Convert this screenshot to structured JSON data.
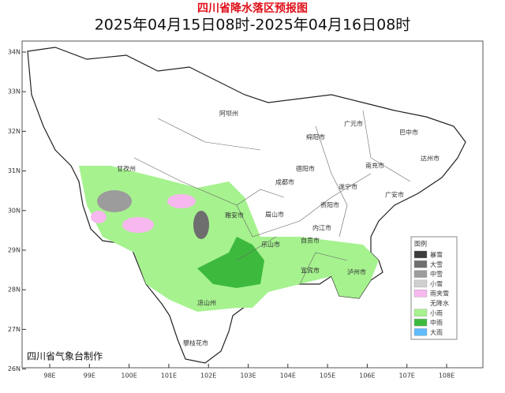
{
  "header": {
    "title": "四川省降水落区预报图",
    "subtitle": "2025年04月15日08时-2025年04月16日08时"
  },
  "lat_labels": [
    "34N",
    "33N",
    "32N",
    "31N",
    "30N",
    "29N",
    "28N",
    "27N",
    "26N"
  ],
  "lon_labels": [
    "98E",
    "99E",
    "100E",
    "101E",
    "102E",
    "103E",
    "104E",
    "105E",
    "106E",
    "107E",
    "108E"
  ],
  "places": [
    "阿坝州",
    "广元市",
    "绵阳市",
    "巴中市",
    "达州市",
    "德阳市",
    "南充市",
    "甘孜州",
    "成都市",
    "遂宁市",
    "广安市",
    "资阳市",
    "雅安市",
    "眉山市",
    "内江市",
    "乐山市",
    "自贡市",
    "宜宾市",
    "泸州市",
    "凉山州",
    "攀枝花市"
  ],
  "legend": {
    "title": "图例",
    "items": [
      {
        "name": "暴雪",
        "color": "#3c3c3c"
      },
      {
        "name": "大雪",
        "color": "#6e6e6e"
      },
      {
        "name": "中雪",
        "color": "#9c9c9c"
      },
      {
        "name": "小雪",
        "color": "#cfcfcf"
      },
      {
        "name": "雨夹雪",
        "color": "#f7b8ef"
      },
      {
        "name": "无降水",
        "color": "#ffffff"
      },
      {
        "name": "小雨",
        "color": "#a6f28f"
      },
      {
        "name": "中雨",
        "color": "#3dba3d"
      },
      {
        "name": "大雨",
        "color": "#61bbff"
      }
    ]
  },
  "footer": "四川省气象台制作"
}
